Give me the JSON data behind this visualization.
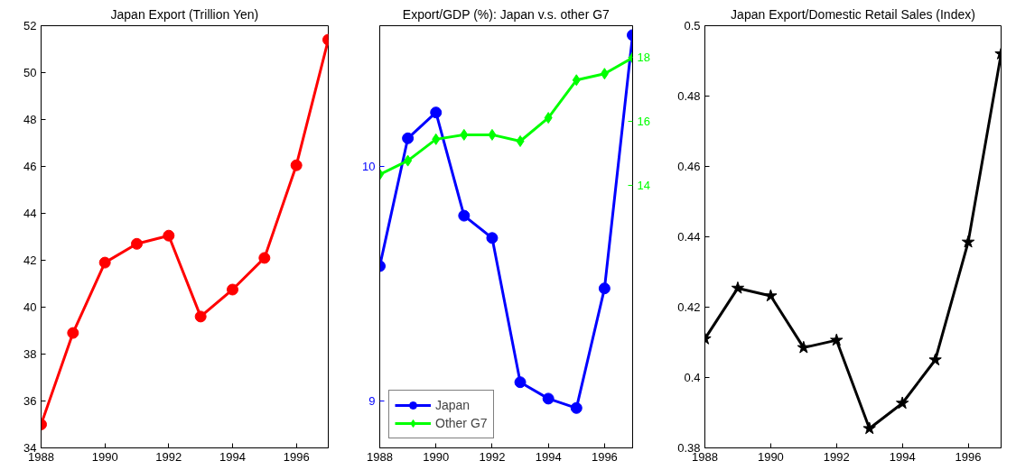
{
  "chart_data": [
    {
      "type": "line",
      "title": "Japan Export (Trillion Yen)",
      "x": [
        1988,
        1989,
        1990,
        1991,
        1992,
        1993,
        1994,
        1995,
        1996,
        1997
      ],
      "xlim": [
        1988,
        1997
      ],
      "xticks": [
        1988,
        1990,
        1992,
        1994,
        1996
      ],
      "ylim": [
        34,
        52
      ],
      "yticks": [
        34,
        36,
        38,
        40,
        42,
        44,
        46,
        48,
        50,
        52
      ],
      "grid": false,
      "legend": false,
      "marker": "circle",
      "line_style": "solid",
      "series": [
        {
          "color": "#ff0000",
          "values": [
            35.0,
            38.9,
            41.9,
            42.7,
            43.05,
            39.6,
            40.75,
            42.1,
            46.05,
            51.4
          ]
        }
      ]
    },
    {
      "type": "line",
      "title": "Export/GDP (%): Japan v.s. other G7",
      "x": [
        1988,
        1989,
        1990,
        1991,
        1992,
        1993,
        1994,
        1995,
        1996,
        1997
      ],
      "xlim": [
        1988,
        1997
      ],
      "xticks": [
        1988,
        1990,
        1992,
        1994,
        1996
      ],
      "ylim": [
        8.8,
        10.6
      ],
      "yticks": [
        9,
        10
      ],
      "y2lim": [
        5.8,
        19
      ],
      "y2ticks": [
        14,
        16,
        18
      ],
      "grid": false,
      "legend": "bottom left",
      "line_style": "solid",
      "series": [
        {
          "name": "Japan",
          "color": "#0000ff",
          "marker": "circle",
          "values": [
            9.575,
            10.12,
            10.23,
            9.79,
            9.695,
            9.08,
            9.01,
            8.97,
            9.48,
            10.56
          ]
        },
        {
          "name": "Other G7",
          "color": "#00ff00",
          "marker": "diamond",
          "axis": "y2",
          "values": [
            14.35,
            14.78,
            15.45,
            15.59,
            15.59,
            15.39,
            16.12,
            17.3,
            17.5,
            18.0
          ]
        }
      ]
    },
    {
      "type": "line",
      "title": "Japan Export/Domestic Retail Sales (Index)",
      "x": [
        1988,
        1989,
        1990,
        1991,
        1992,
        1993,
        1994,
        1995,
        1996,
        1997
      ],
      "xlim": [
        1988,
        1997
      ],
      "xticks": [
        1988,
        1990,
        1992,
        1994,
        1996
      ],
      "ylim": [
        0.38,
        0.5
      ],
      "yticks": [
        {
          "value": 0.38,
          "label": "0.38"
        },
        {
          "value": 0.4,
          "label": "0.4"
        },
        {
          "value": 0.42,
          "label": "0.42"
        },
        {
          "value": 0.44,
          "label": "0.44"
        },
        {
          "value": 0.46,
          "label": "0.46"
        },
        {
          "value": 0.48,
          "label": "0.48"
        },
        {
          "value": 0.5,
          "label": "0.5"
        }
      ],
      "grid": false,
      "legend": false,
      "marker": "star",
      "line_style": "solid",
      "series": [
        {
          "color": "#000000",
          "values": [
            0.411,
            0.4254,
            0.4232,
            0.4085,
            0.4106,
            0.3855,
            0.3927,
            0.405,
            0.4385,
            0.492
          ]
        }
      ]
    }
  ]
}
